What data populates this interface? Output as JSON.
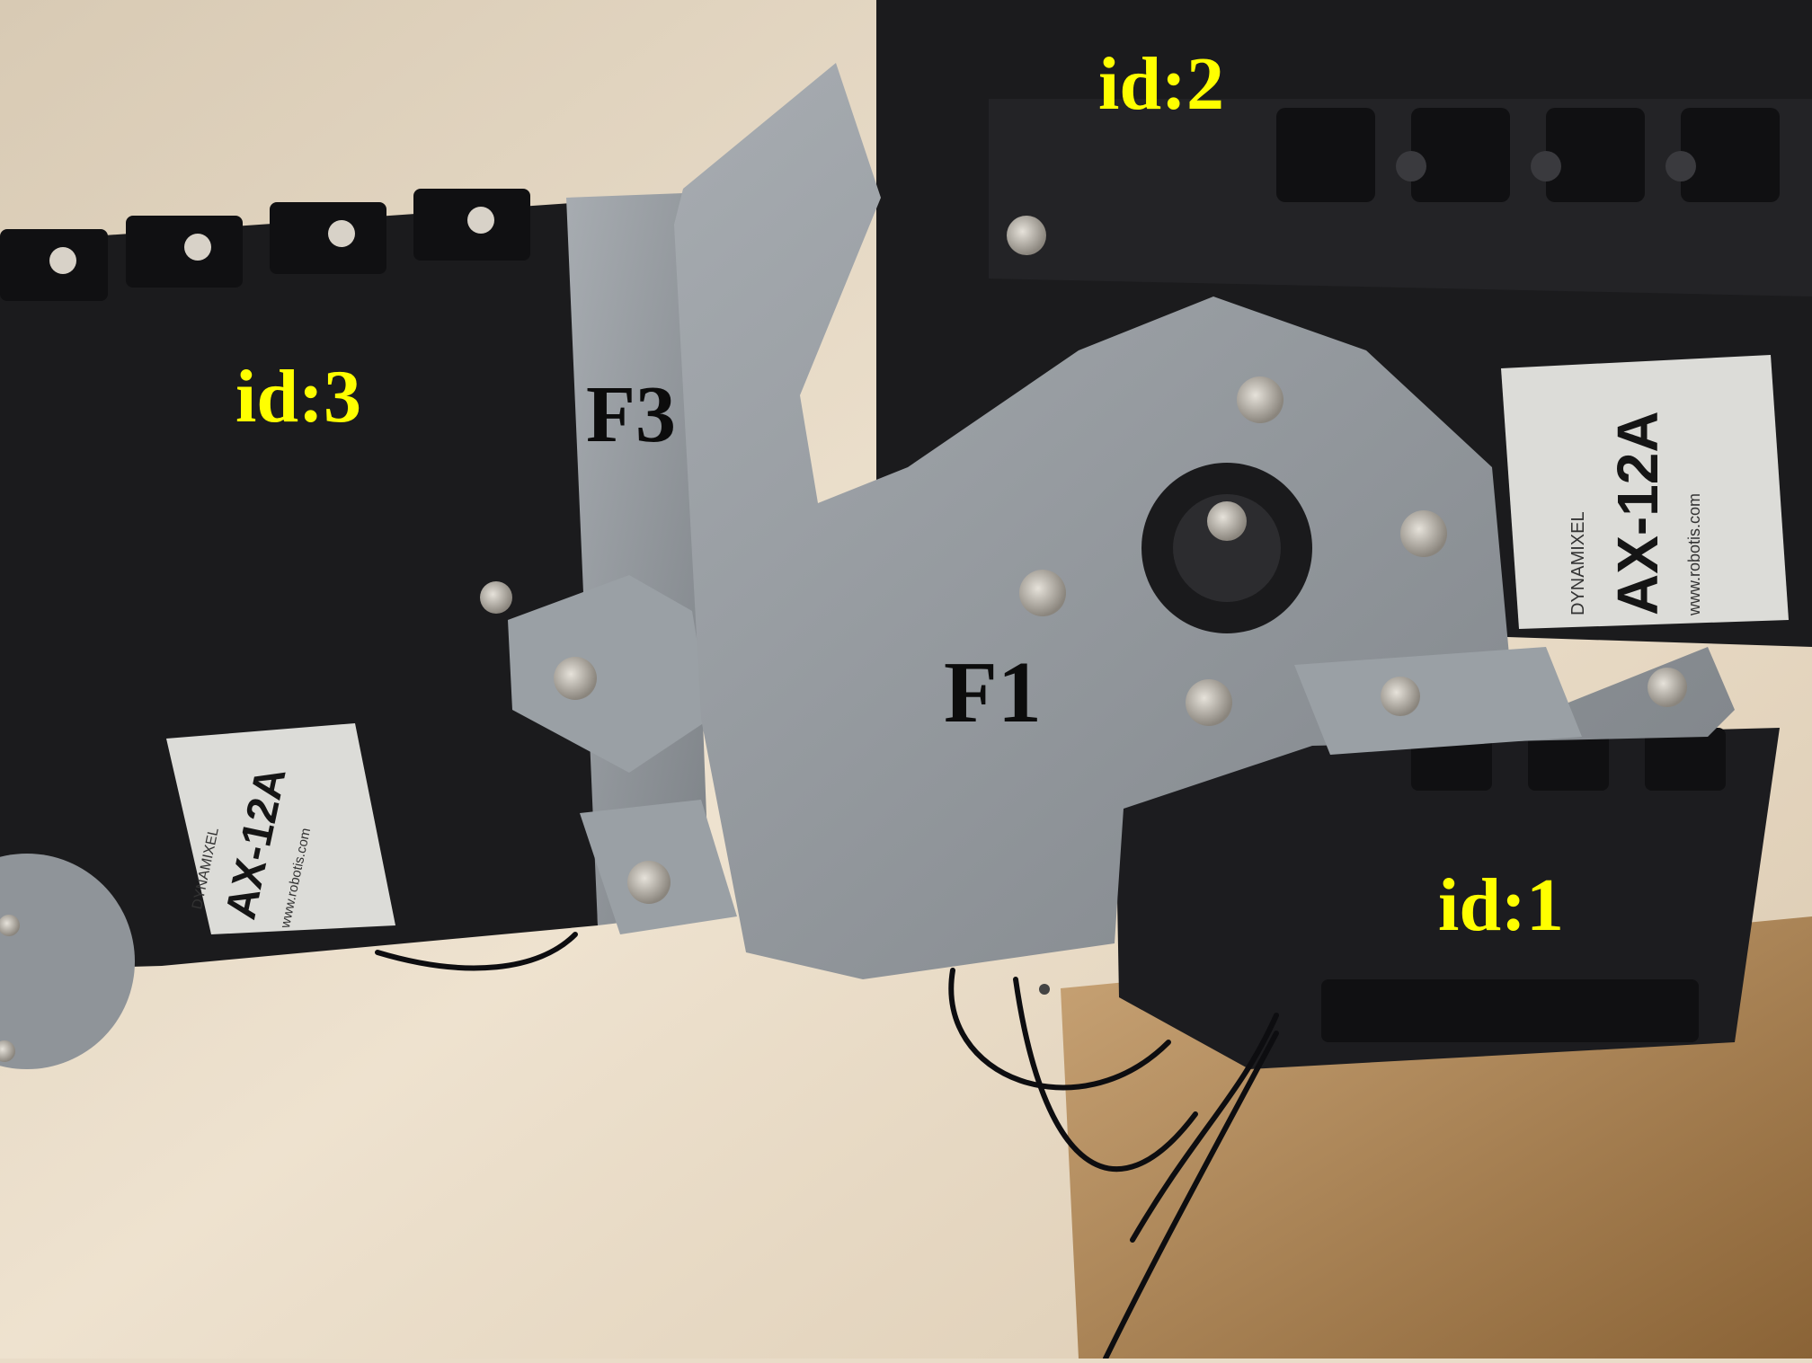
{
  "labels": {
    "id2": "id:2",
    "id3": "id:3",
    "f3": "F3",
    "f1": "F1",
    "id1": "id:1"
  },
  "servo_sticker": {
    "brand": "DYNAMIXEL",
    "model": "AX-12A",
    "url": "www.robotis.com"
  },
  "colors": {
    "label_yellow": "#ffff00",
    "label_black": "#0c0c0c",
    "servo_black": "#1b1b1d",
    "bracket_gray": "#8f9499",
    "table_beige": "#e9dcc8"
  }
}
